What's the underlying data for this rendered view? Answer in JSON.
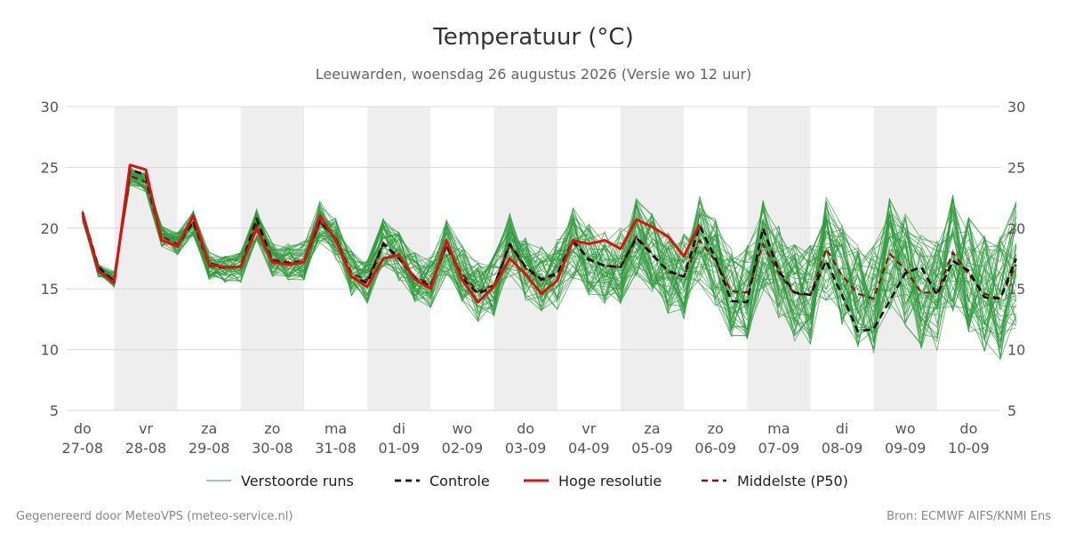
{
  "chart_data": {
    "type": "line",
    "title": "Temperatuur (°C)",
    "subtitle": "Leeuwarden, woensdag 26 augustus 2026 (Versie wo 12 uur)",
    "ylim": [
      5,
      30
    ],
    "yticks": [
      5,
      10,
      15,
      20,
      25,
      30
    ],
    "x_range_days": [
      -0.25,
      14.5
    ],
    "x_ticks": [
      {
        "day": "do",
        "date": "27-08"
      },
      {
        "day": "vr",
        "date": "28-08"
      },
      {
        "day": "za",
        "date": "29-08"
      },
      {
        "day": "zo",
        "date": "30-08"
      },
      {
        "day": "ma",
        "date": "31-08"
      },
      {
        "day": "di",
        "date": "01-09"
      },
      {
        "day": "wo",
        "date": "02-09"
      },
      {
        "day": "do",
        "date": "03-09"
      },
      {
        "day": "vr",
        "date": "04-09"
      },
      {
        "day": "za",
        "date": "05-09"
      },
      {
        "day": "zo",
        "date": "06-09"
      },
      {
        "day": "ma",
        "date": "07-09"
      },
      {
        "day": "di",
        "date": "08-09"
      },
      {
        "day": "wo",
        "date": "09-09"
      },
      {
        "day": "do",
        "date": "10-09"
      }
    ],
    "series": [
      {
        "name": "Controle",
        "color": "#111111",
        "style": "dashed",
        "values": [
          21.3,
          16.8,
          15.6,
          24.8,
          24.4,
          19.0,
          18.5,
          20.6,
          17.1,
          16.8,
          16.8,
          20.8,
          17.3,
          17.1,
          17.2,
          20.6,
          19.1,
          16.0,
          15.5,
          18.7,
          17.5,
          15.9,
          15.2,
          18.6,
          15.9,
          14.6,
          15.2,
          18.7,
          16.8,
          15.8,
          16.3,
          19.0,
          17.4,
          16.9,
          16.8,
          19.2,
          17.8,
          16.5,
          16.0,
          20.2,
          17.5,
          14.0,
          13.9,
          20.0,
          16.5,
          14.7,
          14.5,
          17.3,
          14.5,
          11.5,
          11.7,
          14.0,
          16.3,
          16.8,
          14.5,
          17.3,
          16.5,
          14.3,
          14.2,
          17.5
        ]
      },
      {
        "name": "Hoge resolutie",
        "color": "#dd1111",
        "style": "solid",
        "values": [
          21.3,
          16.5,
          15.5,
          25.2,
          24.8,
          19.0,
          18.5,
          21.0,
          17.0,
          16.8,
          16.8,
          20.0,
          17.2,
          17.0,
          17.2,
          21.0,
          19.0,
          16.0,
          15.2,
          17.5,
          17.8,
          15.8,
          15.0,
          19.0,
          15.7,
          13.9,
          15.2,
          17.5,
          16.2,
          14.6,
          15.7,
          19.0,
          18.7,
          19.0,
          18.3,
          20.7,
          20.1,
          19.3,
          17.7,
          20.3
        ]
      },
      {
        "name": "Middelste (P50)",
        "color": "#8b1010",
        "style": "dashed",
        "values": [
          21.0,
          16.5,
          15.8,
          24.3,
          23.8,
          19.3,
          18.7,
          20.4,
          16.9,
          16.7,
          16.8,
          20.3,
          17.4,
          17.2,
          17.3,
          20.5,
          19.2,
          16.3,
          15.7,
          18.8,
          17.6,
          16.0,
          15.4,
          18.5,
          16.2,
          14.8,
          15.3,
          18.6,
          16.7,
          15.7,
          16.2,
          18.8,
          17.5,
          16.9,
          16.8,
          19.3,
          17.9,
          16.4,
          16.0,
          19.0,
          17.3,
          14.8,
          14.7,
          18.7,
          16.3,
          14.6,
          14.5,
          18.3,
          16.1,
          14.6,
          14.2,
          17.9,
          16.6,
          14.7,
          14.7,
          18.0,
          16.2,
          14.6,
          14.2,
          17.0
        ]
      },
      {
        "name": "Verstoorde runs",
        "color": "#2e9a3c",
        "style": "thin",
        "count": 50
      }
    ],
    "legend_position": "bottom",
    "grid": true
  },
  "legend": [
    {
      "label": "Verstoorde runs",
      "color": "#2e9a3c",
      "style": "thin"
    },
    {
      "label": "Controle",
      "color": "#111111",
      "style": "dashed"
    },
    {
      "label": "Hoge resolutie",
      "color": "#dd1111",
      "style": "solid"
    },
    {
      "label": "Middelste (P50)",
      "color": "#8b1010",
      "style": "dashed"
    }
  ],
  "footer": {
    "left": "Gegenereerd door MeteoVPS (meteo-service.nl)",
    "right": "Bron: ECMWF AIFS/KNMI Ens"
  }
}
